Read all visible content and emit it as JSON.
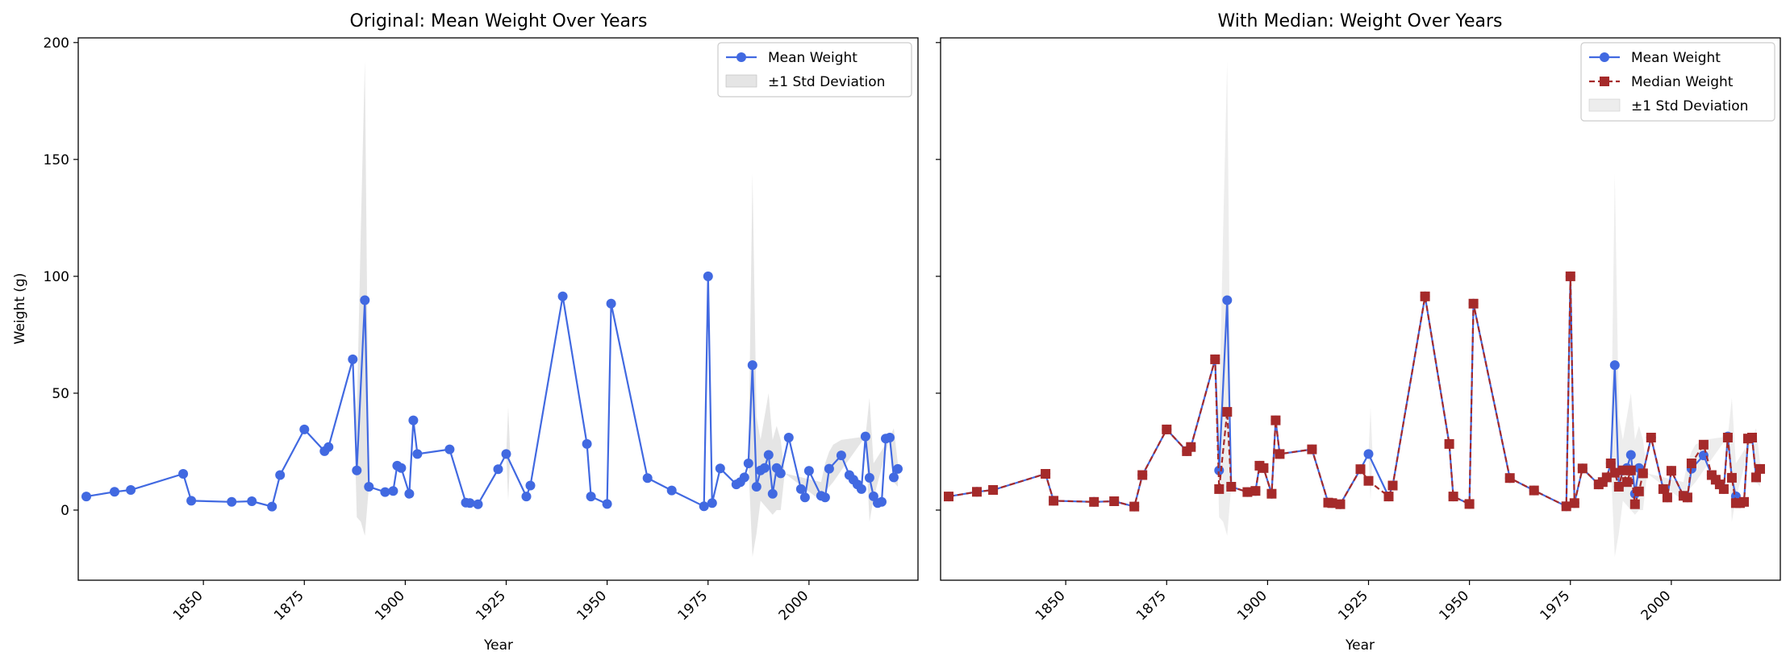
{
  "chart_data": [
    {
      "type": "line",
      "title": "Original: Mean Weight Over Years",
      "xlabel": "Year",
      "ylabel": "Weight (g)",
      "xlim": [
        1819,
        2027
      ],
      "ylim": [
        -30,
        202
      ],
      "xticks": [
        1850,
        1875,
        1900,
        1925,
        1950,
        1975,
        2000
      ],
      "xtick_labels": [
        "1850",
        "1875",
        "1900",
        "1925",
        "1950",
        "1975",
        "2000"
      ],
      "yticks": [
        0,
        50,
        100,
        150,
        200
      ],
      "ytick_labels": [
        "0",
        "50",
        "100",
        "150",
        "200"
      ],
      "grid": false,
      "legend_position": "top-right",
      "legend": [
        "Mean Weight",
        "±1 Std Deviation"
      ],
      "series": [
        {
          "name": "Mean Weight",
          "color": "#4169E1",
          "marker": "circle",
          "x": [
            1821,
            1828,
            1832,
            1845,
            1847,
            1857,
            1862,
            1867,
            1869,
            1875,
            1880,
            1881,
            1887,
            1888,
            1890,
            1891,
            1895,
            1897,
            1898,
            1899,
            1901,
            1902,
            1903,
            1911,
            1915,
            1916,
            1918,
            1923,
            1925,
            1930,
            1931,
            1939,
            1945,
            1946,
            1950,
            1951,
            1960,
            1966,
            1974,
            1975,
            1976,
            1978,
            1982,
            1983,
            1984,
            1985,
            1986,
            1987,
            1988,
            1989,
            1990,
            1991,
            1992,
            1993,
            1995,
            1998,
            1999,
            2000,
            2003,
            2004,
            2005,
            2008,
            2010,
            2011,
            2012,
            2013,
            2014,
            2015,
            2016,
            2017,
            2018,
            2019,
            2020,
            2021,
            2022
          ],
          "values": [
            5.8,
            7.8,
            8.6,
            15.5,
            4,
            3.5,
            3.8,
            1.5,
            15,
            34.5,
            25.2,
            27,
            64.5,
            17,
            89.8,
            10,
            7.7,
            8.2,
            19,
            18,
            7,
            38.4,
            24,
            26,
            3.2,
            3,
            2.5,
            17.5,
            24,
            5.8,
            10.5,
            91.4,
            28.3,
            5.8,
            2.6,
            88.3,
            13.7,
            8.4,
            1.6,
            100,
            3,
            17.8,
            11,
            12,
            14,
            20,
            62,
            10,
            17,
            18,
            23.6,
            7,
            18,
            15.7,
            31,
            9,
            5.4,
            16.8,
            6.1,
            5.4,
            17.7,
            23.4,
            15,
            13,
            11,
            9,
            31.5,
            13.8,
            5.9,
            3,
            3.5,
            30.6,
            31,
            14,
            17.6
          ]
        },
        {
          "name": "±1 Std Deviation",
          "color": "#d3d3d3",
          "type": "area",
          "x": [
            1887,
            1888,
            1889,
            1890,
            1891,
            1925,
            1925.5,
            1926,
            1985,
            1986,
            1987,
            1988,
            1990,
            1991,
            1992,
            1993,
            1994,
            2003,
            2004,
            2005,
            2006,
            2008,
            2014,
            2015,
            2016,
            2020,
            2021,
            2022
          ],
          "upper": [
            64.5,
            40,
            120,
            192,
            10,
            24,
            44,
            24,
            20,
            144,
            40,
            30,
            50,
            30,
            36,
            30,
            15.7,
            12,
            20,
            25,
            28,
            30,
            31.5,
            48,
            20,
            31,
            35,
            20
          ],
          "lower": [
            64.5,
            -3,
            -5,
            -11,
            10,
            24,
            4,
            24,
            20,
            -20,
            -10,
            4,
            0,
            -2,
            0,
            0,
            15.7,
            4,
            8,
            10,
            12,
            17,
            31.5,
            -5,
            5,
            31,
            12,
            10
          ]
        }
      ]
    },
    {
      "type": "line",
      "title": "With Median: Weight Over Years",
      "xlabel": "Year",
      "ylabel": "",
      "xlim": [
        1819,
        2027
      ],
      "ylim": [
        -30,
        202
      ],
      "xticks": [
        1850,
        1875,
        1900,
        1925,
        1950,
        1975,
        2000
      ],
      "xtick_labels": [
        "1850",
        "1875",
        "1900",
        "1925",
        "1950",
        "1975",
        "2000"
      ],
      "yticks": [
        0,
        50,
        100,
        150,
        200
      ],
      "ytick_labels": [],
      "grid": false,
      "legend_position": "top-right",
      "legend": [
        "Mean Weight",
        "Median Weight",
        "±1 Std Deviation"
      ],
      "series": [
        {
          "name": "Mean Weight",
          "color": "#4169E1",
          "marker": "circle",
          "x": [
            1821,
            1828,
            1832,
            1845,
            1847,
            1857,
            1862,
            1867,
            1869,
            1875,
            1880,
            1881,
            1887,
            1888,
            1890,
            1891,
            1895,
            1897,
            1898,
            1899,
            1901,
            1902,
            1903,
            1911,
            1915,
            1916,
            1918,
            1923,
            1925,
            1930,
            1931,
            1939,
            1945,
            1946,
            1950,
            1951,
            1960,
            1966,
            1974,
            1975,
            1976,
            1978,
            1982,
            1983,
            1984,
            1985,
            1986,
            1987,
            1988,
            1989,
            1990,
            1991,
            1992,
            1993,
            1995,
            1998,
            1999,
            2000,
            2003,
            2004,
            2005,
            2008,
            2010,
            2011,
            2012,
            2013,
            2014,
            2015,
            2016,
            2017,
            2018,
            2019,
            2020,
            2021,
            2022
          ],
          "values": [
            5.8,
            7.8,
            8.6,
            15.5,
            4,
            3.5,
            3.8,
            1.5,
            15,
            34.5,
            25.2,
            27,
            64.5,
            17,
            89.8,
            10,
            7.7,
            8.2,
            19,
            18,
            7,
            38.4,
            24,
            26,
            3.2,
            3,
            2.5,
            17.5,
            24,
            5.8,
            10.5,
            91.4,
            28.3,
            5.8,
            2.6,
            88.3,
            13.7,
            8.4,
            1.6,
            100,
            3,
            17.8,
            11,
            12,
            14,
            20,
            62,
            10,
            17,
            18,
            23.6,
            7,
            18,
            15.7,
            31,
            9,
            5.4,
            16.8,
            6.1,
            5.4,
            17.7,
            23.4,
            15,
            13,
            11,
            9,
            31.5,
            13.8,
            5.9,
            3,
            3.5,
            30.6,
            31,
            14,
            17.6
          ]
        },
        {
          "name": "Median Weight",
          "color": "#A52A2A",
          "marker": "square",
          "linestyle": "dashed",
          "x": [
            1821,
            1828,
            1832,
            1845,
            1847,
            1857,
            1862,
            1867,
            1869,
            1875,
            1880,
            1881,
            1887,
            1888,
            1890,
            1891,
            1895,
            1897,
            1898,
            1899,
            1901,
            1902,
            1903,
            1911,
            1915,
            1916,
            1918,
            1923,
            1925,
            1930,
            1931,
            1939,
            1945,
            1946,
            1950,
            1951,
            1960,
            1966,
            1974,
            1975,
            1976,
            1978,
            1982,
            1983,
            1984,
            1985,
            1986,
            1987,
            1988,
            1989,
            1990,
            1991,
            1992,
            1993,
            1995,
            1998,
            1999,
            2000,
            2003,
            2004,
            2005,
            2008,
            2010,
            2011,
            2012,
            2013,
            2014,
            2015,
            2016,
            2017,
            2018,
            2019,
            2020,
            2021,
            2022
          ],
          "values": [
            5.8,
            7.8,
            8.6,
            15.5,
            4,
            3.5,
            3.8,
            1.5,
            15,
            34.5,
            25.2,
            27,
            64.5,
            9,
            42,
            10,
            7.7,
            8.2,
            19,
            18,
            7,
            38.4,
            24,
            26,
            3.2,
            3,
            2.5,
            17.5,
            12.5,
            5.8,
            10.5,
            91.4,
            28.3,
            5.8,
            2.6,
            88.3,
            13.7,
            8.4,
            1.6,
            100,
            3,
            17.8,
            11,
            12,
            14,
            20,
            16,
            10,
            17,
            12,
            17,
            2.5,
            8,
            15.7,
            31,
            9,
            5.4,
            16.8,
            6.1,
            5.4,
            20,
            28,
            15,
            13,
            11,
            9,
            31,
            13.8,
            3,
            3,
            3.5,
            30.6,
            31,
            14,
            17.6
          ]
        },
        {
          "name": "±1 Std Deviation",
          "color": "#d3d3d3",
          "type": "area",
          "x": [
            1887,
            1888,
            1889,
            1890,
            1891,
            1925,
            1925.5,
            1926,
            1985,
            1986,
            1987,
            1988,
            1990,
            1991,
            1992,
            1993,
            1994,
            2003,
            2004,
            2005,
            2006,
            2008,
            2014,
            2015,
            2016,
            2020,
            2021,
            2022
          ],
          "upper": [
            64.5,
            40,
            120,
            192,
            10,
            24,
            44,
            24,
            20,
            144,
            40,
            30,
            50,
            30,
            36,
            30,
            15.7,
            12,
            20,
            25,
            28,
            30,
            31.5,
            48,
            20,
            31,
            35,
            20
          ],
          "lower": [
            64.5,
            -3,
            -5,
            -11,
            10,
            24,
            4,
            24,
            20,
            -20,
            -10,
            4,
            0,
            -2,
            0,
            0,
            15.7,
            4,
            8,
            10,
            12,
            17,
            31.5,
            -5,
            5,
            31,
            12,
            10
          ]
        }
      ]
    }
  ]
}
